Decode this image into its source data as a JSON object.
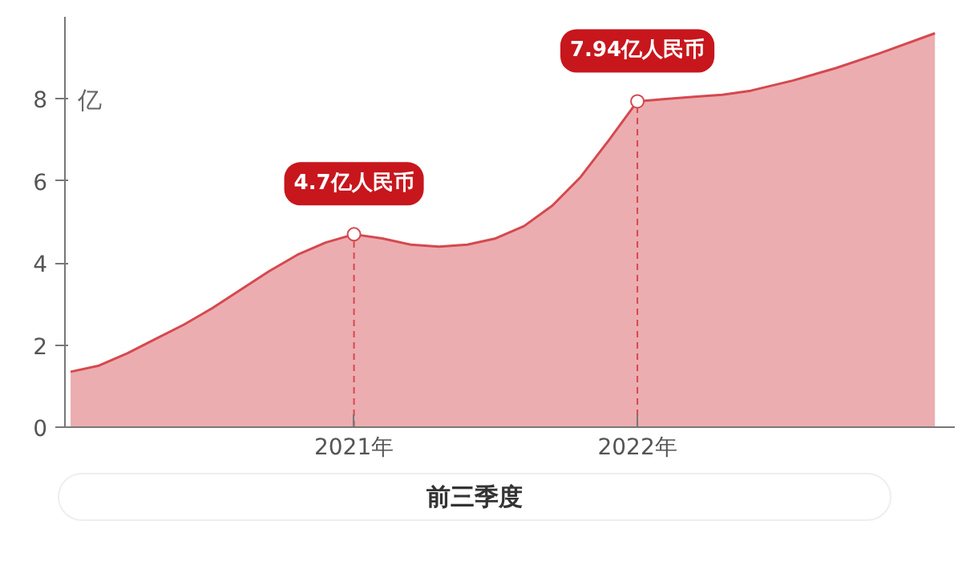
{
  "chart_data": {
    "type": "area",
    "ylabel": "亿",
    "xlabel": "前三季度",
    "series": [
      {
        "color": "#d4494f",
        "x": [
          2020.0,
          2020.1,
          2020.2,
          2020.3,
          2020.4,
          2020.5,
          2020.6,
          2020.7,
          2020.8,
          2020.9,
          2021.0,
          2021.1,
          2021.2,
          2021.3,
          2021.4,
          2021.5,
          2021.6,
          2021.7,
          2021.8,
          2021.9,
          2022.0,
          2022.1,
          2022.2,
          2022.3,
          2022.4,
          2022.55,
          2022.7,
          2022.85,
          2023.05
        ],
        "values": [
          1.35,
          1.5,
          1.8,
          2.15,
          2.5,
          2.9,
          3.35,
          3.8,
          4.2,
          4.5,
          4.7,
          4.6,
          4.45,
          4.4,
          4.45,
          4.6,
          4.9,
          5.4,
          6.1,
          7.0,
          7.94,
          8.0,
          8.05,
          8.1,
          8.2,
          8.45,
          8.75,
          9.1,
          9.6
        ]
      }
    ],
    "ref_lines": [
      {
        "axis": "x",
        "value": 2021,
        "color": "#d4494f",
        "line_style": "dashed"
      },
      {
        "axis": "x",
        "value": 2022,
        "color": "#d4494f",
        "line_style": "dashed"
      }
    ],
    "xlim": [
      2019.98,
      2023.12
    ],
    "ylim": [
      0,
      10
    ],
    "xticks": [
      {
        "value": 2021,
        "label": "2021年"
      },
      {
        "value": 2022,
        "label": "2022年"
      }
    ],
    "yticks": [
      0,
      2,
      4,
      6,
      8
    ],
    "annotations": [
      {
        "text": "4.7亿人民币",
        "x": 2021,
        "y": 4.7
      },
      {
        "text": "7.94亿人民币",
        "x": 2022,
        "y": 7.94
      }
    ],
    "grid": false
  }
}
